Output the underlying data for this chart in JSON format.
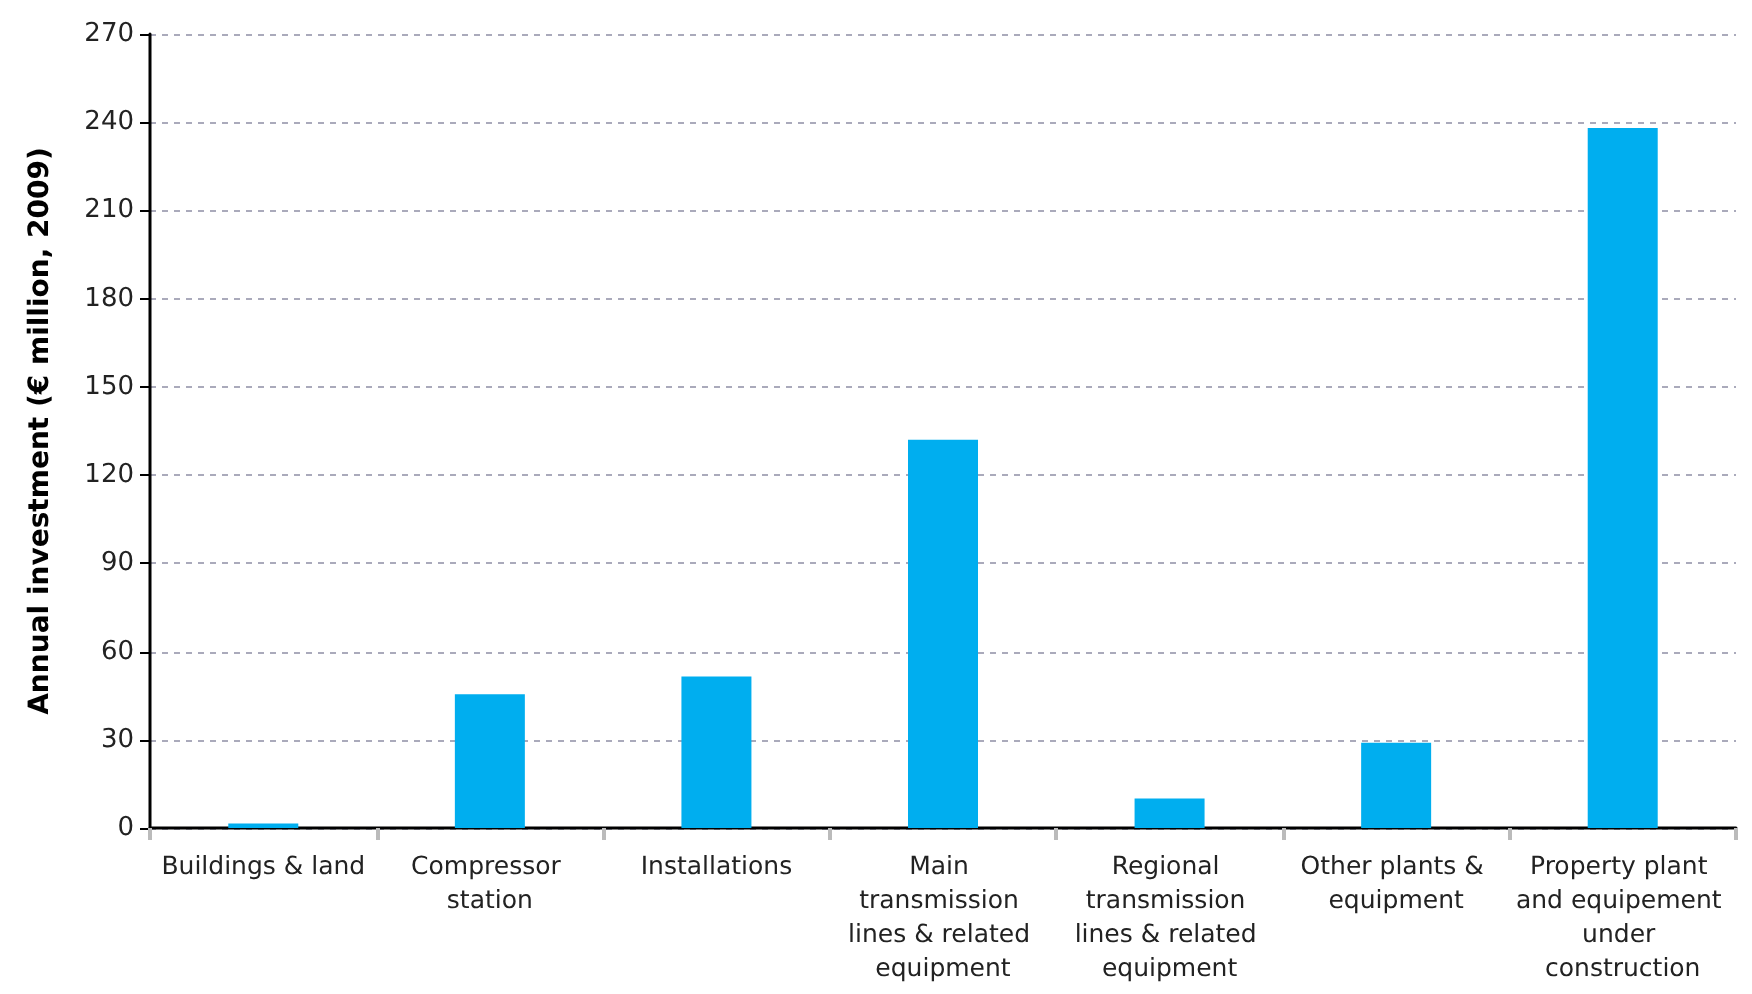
{
  "chart_data": {
    "type": "bar",
    "ylabel": "Annual investment (€ million, 2009)",
    "categories": [
      "Buildings & land",
      "Compressor station",
      "Installations",
      "Main transmission lines & related equipment",
      "Regional transmission lines & related equipment",
      "Other plants & equipment",
      "Property plant and equipement under construction"
    ],
    "values": [
      1.5,
      45.5,
      51.5,
      132,
      10,
      29,
      238
    ],
    "color": "#00aeef",
    "ylim": [
      0,
      270
    ],
    "yticks": [
      0,
      30,
      60,
      90,
      120,
      150,
      180,
      210,
      240,
      270
    ],
    "grid": "y"
  }
}
